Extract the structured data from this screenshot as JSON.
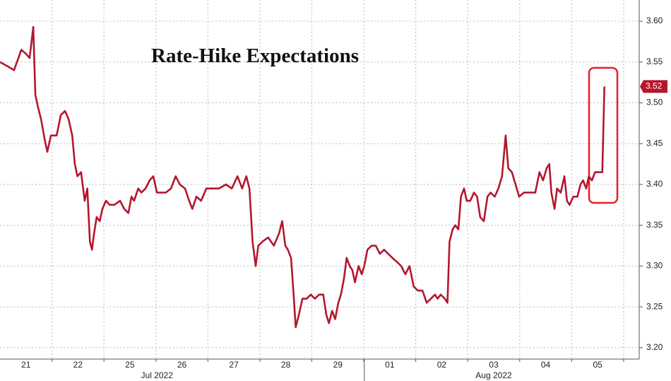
{
  "chart_data": {
    "type": "line",
    "title": "Rate-Hike Expectations",
    "xlim": [
      0,
      12.3
    ],
    "ylim": [
      3.186,
      3.626
    ],
    "xticks": [
      {
        "value": 0.5,
        "label": "21"
      },
      {
        "value": 1.5,
        "label": "22"
      },
      {
        "value": 2.5,
        "label": "25"
      },
      {
        "value": 3.5,
        "label": "26"
      },
      {
        "value": 4.5,
        "label": "27"
      },
      {
        "value": 5.5,
        "label": "28"
      },
      {
        "value": 6.5,
        "label": "29"
      },
      {
        "value": 7.5,
        "label": "01"
      },
      {
        "value": 8.5,
        "label": "02"
      },
      {
        "value": 9.5,
        "label": "03"
      },
      {
        "value": 10.5,
        "label": "04"
      },
      {
        "value": 11.5,
        "label": "05"
      }
    ],
    "month_groups": [
      {
        "label": "Jul 2022",
        "value": 3.02,
        "start": 0
      },
      {
        "label": "Aug 2022",
        "value": 9.5,
        "start": 7.01
      }
    ],
    "yticks": [
      {
        "value": 3.2,
        "label": "3.20"
      },
      {
        "value": 3.25,
        "label": "3.25"
      },
      {
        "value": 3.3,
        "label": "3.30"
      },
      {
        "value": 3.35,
        "label": "3.35"
      },
      {
        "value": 3.4,
        "label": "3.40"
      },
      {
        "value": 3.45,
        "label": "3.45"
      },
      {
        "value": 3.5,
        "label": "3.50"
      },
      {
        "value": 3.55,
        "label": "3.55"
      },
      {
        "value": 3.6,
        "label": "3.60"
      }
    ],
    "grid": true,
    "series": [
      {
        "color": "#b3172d",
        "last_value_label": "3.52",
        "x": [
          0.0,
          0.14,
          0.27,
          0.41,
          0.5,
          0.57,
          0.64,
          0.68,
          0.73,
          0.79,
          0.86,
          0.91,
          0.98,
          1.09,
          1.17,
          1.25,
          1.32,
          1.39,
          1.44,
          1.49,
          1.56,
          1.63,
          1.68,
          1.73,
          1.77,
          1.81,
          1.86,
          1.92,
          1.97,
          2.04,
          2.11,
          2.2,
          2.31,
          2.39,
          2.47,
          2.53,
          2.58,
          2.66,
          2.72,
          2.8,
          2.88,
          2.95,
          3.02,
          3.1,
          3.19,
          3.29,
          3.38,
          3.46,
          3.56,
          3.64,
          3.7,
          3.78,
          3.87,
          3.97,
          4.08,
          4.21,
          4.35,
          4.46,
          4.57,
          4.66,
          4.74,
          4.8,
          4.86,
          4.92,
          4.97,
          5.05,
          5.16,
          5.27,
          5.37,
          5.43,
          5.49,
          5.54,
          5.6,
          5.65,
          5.69,
          5.75,
          5.82,
          5.9,
          5.98,
          6.06,
          6.14,
          6.22,
          6.28,
          6.33,
          6.39,
          6.45,
          6.51,
          6.56,
          6.62,
          6.67,
          6.73,
          6.78,
          6.83,
          6.9,
          6.96,
          7.01,
          7.07,
          7.15,
          7.23,
          7.31,
          7.39,
          7.47,
          7.55,
          7.64,
          7.72,
          7.8,
          7.88,
          7.96,
          8.04,
          8.13,
          8.21,
          8.29,
          8.37,
          8.42,
          8.48,
          8.56,
          8.61,
          8.65,
          8.71,
          8.76,
          8.82,
          8.87,
          8.93,
          8.98,
          9.05,
          9.12,
          9.18,
          9.24,
          9.31,
          9.38,
          9.44,
          9.52,
          9.59,
          9.66,
          9.73,
          9.78,
          9.85,
          9.92,
          9.99,
          10.08,
          10.19,
          10.3,
          10.38,
          10.45,
          10.52,
          10.57,
          10.61,
          10.67,
          10.72,
          10.79,
          10.86,
          10.91,
          10.96,
          11.03,
          11.11,
          11.17,
          11.22,
          11.28,
          11.33,
          11.39,
          11.45,
          11.55,
          11.59,
          11.63
        ],
        "values": [
          3.55,
          3.545,
          3.54,
          3.565,
          3.56,
          3.555,
          3.593,
          3.51,
          3.495,
          3.48,
          3.455,
          3.44,
          3.46,
          3.46,
          3.485,
          3.49,
          3.48,
          3.46,
          3.425,
          3.41,
          3.415,
          3.38,
          3.395,
          3.33,
          3.32,
          3.34,
          3.36,
          3.355,
          3.37,
          3.38,
          3.375,
          3.375,
          3.38,
          3.37,
          3.365,
          3.385,
          3.38,
          3.395,
          3.39,
          3.395,
          3.405,
          3.41,
          3.39,
          3.39,
          3.39,
          3.395,
          3.41,
          3.4,
          3.395,
          3.38,
          3.37,
          3.385,
          3.38,
          3.395,
          3.395,
          3.395,
          3.4,
          3.395,
          3.41,
          3.395,
          3.41,
          3.395,
          3.33,
          3.3,
          3.325,
          3.33,
          3.335,
          3.325,
          3.34,
          3.355,
          3.325,
          3.32,
          3.31,
          3.265,
          3.225,
          3.24,
          3.26,
          3.26,
          3.265,
          3.26,
          3.265,
          3.265,
          3.24,
          3.23,
          3.245,
          3.235,
          3.255,
          3.265,
          3.285,
          3.31,
          3.3,
          3.295,
          3.28,
          3.3,
          3.29,
          3.3,
          3.32,
          3.325,
          3.325,
          3.315,
          3.32,
          3.315,
          3.31,
          3.305,
          3.3,
          3.29,
          3.3,
          3.275,
          3.27,
          3.27,
          3.255,
          3.26,
          3.265,
          3.26,
          3.265,
          3.26,
          3.255,
          3.33,
          3.345,
          3.35,
          3.345,
          3.385,
          3.395,
          3.38,
          3.38,
          3.39,
          3.385,
          3.36,
          3.355,
          3.385,
          3.39,
          3.385,
          3.395,
          3.41,
          3.46,
          3.42,
          3.415,
          3.4,
          3.385,
          3.39,
          3.39,
          3.39,
          3.415,
          3.405,
          3.42,
          3.425,
          3.39,
          3.37,
          3.395,
          3.39,
          3.41,
          3.38,
          3.375,
          3.385,
          3.385,
          3.4,
          3.405,
          3.395,
          3.41,
          3.405,
          3.415,
          3.415,
          3.415,
          3.52
        ]
      }
    ]
  }
}
